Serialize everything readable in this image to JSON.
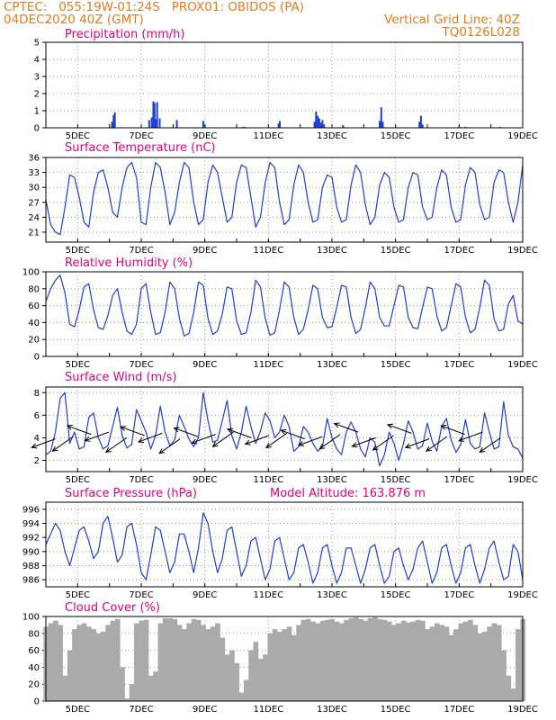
{
  "header": {
    "line1": "CPTEC:   055:19W-01:24S   PROX01: OBIDOS (PA)",
    "line2": "04DEC2020 40Z (GMT)",
    "grid_note": "Vertical Grid Line: 40Z",
    "run_id": "TQ0126L028"
  },
  "model_altitude": "Model Altitude: 163.876 m",
  "colors": {
    "line": "#1f3fd6",
    "bar": "#1f3fd6",
    "cloud": "#aaaaaa",
    "title": "#e5007e",
    "header": "#e87b1e",
    "grid": "#999999"
  },
  "x_labels": [
    "5DEC",
    "7DEC",
    "9DEC",
    "11DEC",
    "13DEC",
    "15DEC",
    "17DEC",
    "19DEC"
  ],
  "chart_data": [
    {
      "type": "bar",
      "title": "Precipitation (mm/h)",
      "ylim": [
        0,
        5
      ],
      "yticks": [
        0,
        1,
        2,
        3,
        4,
        5
      ],
      "xlim": [
        0,
        15
      ],
      "grid": true,
      "x": [
        2.08,
        2.13,
        2.17,
        3.25,
        3.33,
        3.38,
        3.42,
        3.46,
        3.5,
        3.58,
        4.12,
        4.95,
        5.0,
        6.2,
        6.25,
        7.32,
        7.36,
        8.45,
        8.5,
        8.55,
        8.6,
        8.65,
        8.7,
        8.75,
        9.35,
        10.5,
        10.55,
        10.6,
        11.75,
        11.8,
        11.85,
        13.0,
        13.2,
        14.3
      ],
      "values": [
        0.35,
        0.75,
        0.9,
        0.45,
        0.6,
        1.55,
        1.45,
        0.5,
        1.5,
        0.55,
        0.45,
        0.4,
        0.2,
        0.05,
        0.05,
        0.25,
        0.4,
        0.35,
        0.95,
        0.7,
        0.55,
        0.3,
        0.45,
        0.2,
        0.15,
        0.4,
        1.2,
        0.35,
        0.35,
        0.7,
        0.2,
        0.1,
        0.05,
        0.05
      ]
    },
    {
      "type": "line",
      "title": "Surface Temperature (nC)",
      "ylim": [
        19,
        36
      ],
      "yticks": [
        21,
        24,
        27,
        30,
        33,
        36
      ],
      "xlim": [
        0,
        15
      ],
      "grid": true,
      "x": [
        0,
        0.15,
        0.3,
        0.45,
        0.6,
        0.75,
        0.9,
        1.05,
        1.2,
        1.35,
        1.5,
        1.65,
        1.8,
        1.95,
        2.1,
        2.25,
        2.4,
        2.55,
        2.7,
        2.85,
        3.0,
        3.15,
        3.3,
        3.45,
        3.6,
        3.75,
        3.9,
        4.05,
        4.2,
        4.35,
        4.5,
        4.65,
        4.8,
        4.95,
        5.1,
        5.25,
        5.4,
        5.55,
        5.7,
        5.85,
        6.0,
        6.15,
        6.3,
        6.45,
        6.6,
        6.75,
        6.9,
        7.05,
        7.2,
        7.35,
        7.5,
        7.65,
        7.8,
        7.95,
        8.1,
        8.25,
        8.4,
        8.55,
        8.7,
        8.85,
        9.0,
        9.15,
        9.3,
        9.45,
        9.6,
        9.75,
        9.9,
        10.05,
        10.2,
        10.35,
        10.5,
        10.65,
        10.8,
        10.95,
        11.1,
        11.25,
        11.4,
        11.55,
        11.7,
        11.85,
        12.0,
        12.15,
        12.3,
        12.45,
        12.6,
        12.75,
        12.9,
        13.05,
        13.2,
        13.35,
        13.5,
        13.65,
        13.8,
        13.95,
        14.1,
        14.25,
        14.4,
        14.55,
        14.7,
        14.85,
        15.0
      ],
      "values": [
        27.5,
        22.5,
        21.0,
        20.5,
        26.0,
        32.5,
        32.0,
        28.0,
        23.0,
        22.0,
        29.0,
        33.0,
        33.5,
        30.0,
        25.0,
        24.0,
        30.0,
        34.0,
        35.0,
        32.0,
        23.0,
        22.5,
        30.0,
        35.0,
        34.0,
        29.0,
        22.5,
        25.0,
        31.0,
        35.0,
        34.0,
        27.0,
        22.5,
        23.5,
        31.0,
        34.5,
        33.0,
        28.0,
        23.0,
        24.0,
        31.0,
        34.5,
        34.0,
        28.0,
        22.0,
        24.0,
        31.0,
        35.0,
        34.0,
        27.0,
        22.5,
        23.5,
        30.5,
        34.5,
        33.0,
        27.0,
        23.0,
        23.5,
        30.0,
        32.5,
        32.0,
        26.0,
        23.0,
        23.5,
        30.5,
        34.5,
        33.0,
        26.5,
        22.5,
        24.0,
        30.5,
        33.0,
        32.0,
        26.0,
        23.0,
        23.5,
        30.0,
        33.0,
        32.5,
        26.0,
        23.5,
        24.0,
        30.0,
        33.5,
        32.5,
        26.0,
        23.0,
        23.5,
        30.5,
        34.0,
        33.0,
        26.5,
        23.5,
        24.0,
        31.0,
        33.5,
        33.0,
        27.0,
        23.0,
        27.0,
        34.5
      ]
    },
    {
      "type": "line",
      "title": "Relative Humidity (%)",
      "ylim": [
        0,
        100
      ],
      "yticks": [
        0,
        20,
        40,
        60,
        80,
        100
      ],
      "xlim": [
        0,
        15
      ],
      "grid": true,
      "x": [
        0,
        0.15,
        0.3,
        0.45,
        0.6,
        0.75,
        0.9,
        1.05,
        1.2,
        1.35,
        1.5,
        1.65,
        1.8,
        1.95,
        2.1,
        2.25,
        2.4,
        2.55,
        2.7,
        2.85,
        3.0,
        3.15,
        3.3,
        3.45,
        3.6,
        3.75,
        3.9,
        4.05,
        4.2,
        4.35,
        4.5,
        4.65,
        4.8,
        4.95,
        5.1,
        5.25,
        5.4,
        5.55,
        5.7,
        5.85,
        6.0,
        6.15,
        6.3,
        6.45,
        6.6,
        6.75,
        6.9,
        7.05,
        7.2,
        7.35,
        7.5,
        7.65,
        7.8,
        7.95,
        8.1,
        8.25,
        8.4,
        8.55,
        8.7,
        8.85,
        9.0,
        9.15,
        9.3,
        9.45,
        9.6,
        9.75,
        9.9,
        10.05,
        10.2,
        10.35,
        10.5,
        10.65,
        10.8,
        10.95,
        11.1,
        11.25,
        11.4,
        11.55,
        11.7,
        11.85,
        12.0,
        12.15,
        12.3,
        12.45,
        12.6,
        12.75,
        12.9,
        13.05,
        13.2,
        13.35,
        13.5,
        13.65,
        13.8,
        13.95,
        14.1,
        14.25,
        14.4,
        14.55,
        14.7,
        14.85,
        15.0
      ],
      "values": [
        65,
        80,
        90,
        96,
        75,
        38,
        35,
        55,
        82,
        86,
        55,
        34,
        32,
        48,
        72,
        80,
        52,
        30,
        26,
        38,
        80,
        86,
        52,
        26,
        28,
        52,
        88,
        80,
        45,
        24,
        27,
        52,
        88,
        84,
        45,
        26,
        30,
        50,
        82,
        80,
        42,
        26,
        28,
        52,
        90,
        82,
        45,
        25,
        28,
        55,
        88,
        82,
        46,
        26,
        32,
        55,
        84,
        80,
        46,
        34,
        35,
        58,
        84,
        82,
        46,
        27,
        32,
        58,
        88,
        80,
        46,
        36,
        36,
        60,
        84,
        82,
        46,
        34,
        33,
        58,
        82,
        80,
        48,
        30,
        34,
        60,
        86,
        82,
        46,
        28,
        32,
        58,
        90,
        84,
        44,
        30,
        32,
        62,
        72,
        42,
        38
      ]
    },
    {
      "type": "line",
      "title": "Surface Wind (m/s)",
      "ylim": [
        1,
        8.5
      ],
      "yticks": [
        2,
        4,
        6,
        8
      ],
      "xlim": [
        0,
        15
      ],
      "grid": true,
      "x": [
        0,
        0.15,
        0.3,
        0.45,
        0.6,
        0.75,
        0.9,
        1.05,
        1.2,
        1.35,
        1.5,
        1.65,
        1.8,
        1.95,
        2.1,
        2.25,
        2.4,
        2.55,
        2.7,
        2.85,
        3.0,
        3.15,
        3.3,
        3.45,
        3.6,
        3.75,
        3.9,
        4.05,
        4.2,
        4.35,
        4.5,
        4.65,
        4.8,
        4.95,
        5.1,
        5.25,
        5.4,
        5.55,
        5.7,
        5.85,
        6.0,
        6.15,
        6.3,
        6.45,
        6.6,
        6.75,
        6.9,
        7.05,
        7.2,
        7.35,
        7.5,
        7.65,
        7.8,
        7.95,
        8.1,
        8.25,
        8.4,
        8.55,
        8.7,
        8.85,
        9.0,
        9.15,
        9.3,
        9.45,
        9.6,
        9.75,
        9.9,
        10.05,
        10.2,
        10.35,
        10.5,
        10.65,
        10.8,
        10.95,
        11.1,
        11.25,
        11.4,
        11.55,
        11.7,
        11.85,
        12.0,
        12.15,
        12.3,
        12.45,
        12.6,
        12.75,
        12.9,
        13.05,
        13.2,
        13.35,
        13.5,
        13.65,
        13.8,
        13.95,
        14.1,
        14.25,
        14.4,
        14.55,
        14.7,
        14.85,
        15.0
      ],
      "values": [
        2.5,
        2.8,
        4.5,
        7.5,
        8.0,
        3.5,
        4.5,
        3.0,
        3.2,
        5.8,
        6.2,
        4.0,
        3.0,
        3.3,
        5.0,
        6.7,
        4.2,
        3.1,
        3.4,
        6.5,
        5.5,
        4.5,
        3.0,
        4.2,
        6.8,
        4.5,
        3.3,
        3.8,
        6.0,
        5.0,
        3.9,
        3.2,
        4.0,
        8.0,
        5.5,
        3.6,
        3.8,
        5.5,
        7.3,
        4.2,
        3.0,
        4.5,
        6.8,
        5.0,
        3.5,
        4.6,
        6.2,
        5.5,
        4.0,
        4.5,
        6.0,
        5.0,
        2.8,
        3.2,
        5.0,
        4.5,
        3.5,
        2.8,
        3.2,
        5.7,
        4.0,
        3.0,
        2.5,
        4.5,
        5.4,
        4.5,
        3.0,
        2.3,
        4.0,
        3.6,
        1.5,
        2.5,
        4.5,
        3.5,
        2.0,
        3.5,
        5.5,
        4.5,
        3.0,
        3.3,
        5.3,
        3.7,
        2.8,
        5.0,
        5.7,
        3.8,
        2.7,
        3.4,
        5.6,
        3.5,
        3.0,
        3.2,
        6.2,
        4.5,
        3.0,
        3.2,
        7.2,
        4.2,
        3.2,
        3.0,
        2.2
      ]
    },
    {
      "type": "line",
      "title": "Surface Pressure (hPa)",
      "ylim": [
        985,
        997
      ],
      "yticks": [
        986,
        988,
        990,
        992,
        994,
        996
      ],
      "xlim": [
        0,
        15
      ],
      "grid": true,
      "x": [
        0,
        0.15,
        0.3,
        0.45,
        0.6,
        0.75,
        0.9,
        1.05,
        1.2,
        1.35,
        1.5,
        1.65,
        1.8,
        1.95,
        2.1,
        2.25,
        2.4,
        2.55,
        2.7,
        2.85,
        3.0,
        3.15,
        3.3,
        3.45,
        3.6,
        3.75,
        3.9,
        4.05,
        4.2,
        4.35,
        4.5,
        4.65,
        4.8,
        4.95,
        5.1,
        5.25,
        5.4,
        5.55,
        5.7,
        5.85,
        6.0,
        6.15,
        6.3,
        6.45,
        6.6,
        6.75,
        6.9,
        7.05,
        7.2,
        7.35,
        7.5,
        7.65,
        7.8,
        7.95,
        8.1,
        8.25,
        8.4,
        8.55,
        8.7,
        8.85,
        9.0,
        9.15,
        9.3,
        9.45,
        9.6,
        9.75,
        9.9,
        10.05,
        10.2,
        10.35,
        10.5,
        10.65,
        10.8,
        10.95,
        11.1,
        11.25,
        11.4,
        11.55,
        11.7,
        11.85,
        12.0,
        12.15,
        12.3,
        12.45,
        12.6,
        12.75,
        12.9,
        13.05,
        13.2,
        13.35,
        13.5,
        13.65,
        13.8,
        13.95,
        14.1,
        14.25,
        14.4,
        14.55,
        14.7,
        14.85,
        15.0
      ],
      "values": [
        991.0,
        992.5,
        994.0,
        993.0,
        990.0,
        988.0,
        990.5,
        993.0,
        993.5,
        991.5,
        989.0,
        990.0,
        994.0,
        995.0,
        992.0,
        988.5,
        989.5,
        993.5,
        994.0,
        991.0,
        987.0,
        986.0,
        989.5,
        993.5,
        993.0,
        990.0,
        987.0,
        988.5,
        992.5,
        992.5,
        990.0,
        987.0,
        990.5,
        995.5,
        994.0,
        990.0,
        987.0,
        989.0,
        993.0,
        993.5,
        990.0,
        986.5,
        988.0,
        991.5,
        992.0,
        989.0,
        986.0,
        987.5,
        991.5,
        992.0,
        989.0,
        986.0,
        987.0,
        990.5,
        991.0,
        988.5,
        985.5,
        987.0,
        990.5,
        991.0,
        988.0,
        985.5,
        987.0,
        990.5,
        990.5,
        988.0,
        985.5,
        987.5,
        990.5,
        991.0,
        988.0,
        985.5,
        986.5,
        990.0,
        990.5,
        988.0,
        986.0,
        987.5,
        990.5,
        991.5,
        988.5,
        985.5,
        987.0,
        990.5,
        991.0,
        988.0,
        985.5,
        987.0,
        990.5,
        991.0,
        988.0,
        985.5,
        987.5,
        990.5,
        991.5,
        988.5,
        986.0,
        986.5,
        991.0,
        990.0,
        986.0
      ]
    },
    {
      "type": "area",
      "title": "Cloud Cover (%)",
      "ylim": [
        0,
        100
      ],
      "yticks": [
        0,
        20,
        40,
        60,
        80,
        100
      ],
      "xlim": [
        0,
        15
      ],
      "grid": true,
      "x": [
        0,
        0.15,
        0.3,
        0.45,
        0.6,
        0.75,
        0.9,
        1.05,
        1.2,
        1.35,
        1.5,
        1.65,
        1.8,
        1.95,
        2.1,
        2.25,
        2.4,
        2.55,
        2.7,
        2.85,
        3.0,
        3.15,
        3.3,
        3.45,
        3.6,
        3.75,
        3.9,
        4.05,
        4.2,
        4.35,
        4.5,
        4.65,
        4.8,
        4.95,
        5.1,
        5.25,
        5.4,
        5.55,
        5.7,
        5.85,
        6.0,
        6.15,
        6.3,
        6.45,
        6.6,
        6.75,
        6.9,
        7.05,
        7.2,
        7.35,
        7.5,
        7.65,
        7.8,
        7.95,
        8.1,
        8.25,
        8.4,
        8.55,
        8.7,
        8.85,
        9.0,
        9.15,
        9.3,
        9.45,
        9.6,
        9.75,
        9.9,
        10.05,
        10.2,
        10.35,
        10.5,
        10.65,
        10.8,
        10.95,
        11.1,
        11.25,
        11.4,
        11.55,
        11.7,
        11.85,
        12.0,
        12.15,
        12.3,
        12.45,
        12.6,
        12.75,
        12.9,
        13.05,
        13.2,
        13.35,
        13.5,
        13.65,
        13.8,
        13.95,
        14.1,
        14.25,
        14.4,
        14.55,
        14.7,
        14.85,
        15.0
      ],
      "values": [
        88,
        92,
        95,
        90,
        30,
        60,
        85,
        90,
        92,
        88,
        85,
        80,
        82,
        90,
        95,
        97,
        40,
        3,
        20,
        92,
        95,
        96,
        30,
        35,
        92,
        98,
        98,
        97,
        90,
        85,
        92,
        97,
        96,
        90,
        85,
        88,
        92,
        75,
        55,
        60,
        45,
        10,
        25,
        60,
        70,
        50,
        55,
        80,
        85,
        82,
        85,
        88,
        78,
        90,
        96,
        97,
        94,
        92,
        95,
        96,
        97,
        94,
        92,
        96,
        98,
        99,
        97,
        95,
        98,
        99,
        97,
        96,
        94,
        90,
        92,
        95,
        93,
        94,
        96,
        95,
        85,
        88,
        92,
        90,
        88,
        78,
        85,
        92,
        94,
        96,
        90,
        80,
        82,
        88,
        92,
        90,
        60,
        30,
        15,
        85,
        97
      ]
    }
  ]
}
